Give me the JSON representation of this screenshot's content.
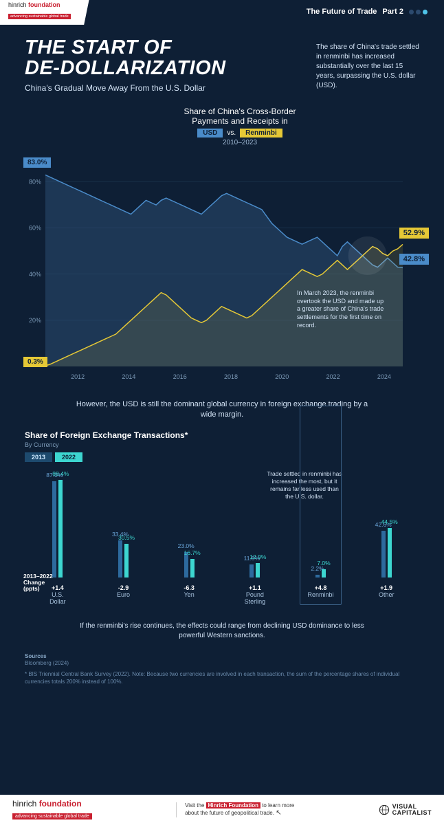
{
  "meta": {
    "brand_html": "hinrich <b>foundation</b>",
    "brand_tag": "advancing sustainable global trade",
    "series": "The Future of Trade",
    "part": "Part 2",
    "dot_count": 3,
    "dot_active_index": 2
  },
  "hero": {
    "title_l1": "THE START OF",
    "title_l2": "DE-DOLLARIZATION",
    "subtitle": "China's Gradual Move Away From the U.S. Dollar",
    "blurb": "The share of China's trade settled in renminbi has increased substantially over the last 15 years, surpassing the U.S. dollar (USD)."
  },
  "chart1": {
    "title": "Share of China's Cross-Border\nPayments and Receipts in",
    "legend_usd": "USD",
    "legend_vs": "vs.",
    "legend_rmb": "Renminbi",
    "period": "2010–2023",
    "y_ticks": [
      "80%",
      "60%",
      "40%",
      "20%"
    ],
    "x_ticks": [
      "2012",
      "2014",
      "2016",
      "2018",
      "2020",
      "2022",
      "2024"
    ],
    "usd_start": "83.0%",
    "rmb_start": "0.3%",
    "usd_end": "42.8%",
    "rmb_end": "52.9%",
    "annotation": "In March 2023, the renminbi overtook the USD and made up a greater share of China's trade settlements for the first time on record.",
    "colors": {
      "usd": "#4a8bc9",
      "usd_fill": "#30557d",
      "rmb": "#e5c836",
      "grid": "#24405e"
    },
    "usd_series": [
      83,
      82,
      81,
      80,
      79,
      78,
      77,
      76,
      75,
      74,
      73,
      72,
      71,
      70,
      69,
      68,
      67,
      66,
      68,
      70,
      72,
      71,
      70,
      72,
      73,
      72,
      71,
      70,
      69,
      68,
      67,
      66,
      68,
      70,
      72,
      74,
      75,
      74,
      73,
      72,
      71,
      70,
      69,
      68,
      65,
      62,
      60,
      58,
      56,
      55,
      54,
      53,
      54,
      55,
      56,
      54,
      52,
      50,
      48,
      52,
      54,
      52,
      50,
      48,
      46,
      44,
      43,
      45,
      47,
      45,
      43,
      42.8
    ],
    "rmb_series": [
      0.3,
      1,
      2,
      3,
      4,
      5,
      6,
      7,
      8,
      9,
      10,
      11,
      12,
      13,
      14,
      16,
      18,
      20,
      22,
      24,
      26,
      28,
      30,
      32,
      31,
      29,
      27,
      25,
      23,
      21,
      20,
      19,
      20,
      22,
      24,
      26,
      25,
      24,
      23,
      22,
      21,
      22,
      24,
      26,
      28,
      30,
      32,
      34,
      36,
      38,
      40,
      42,
      41,
      40,
      39,
      40,
      42,
      44,
      46,
      44,
      42,
      44,
      46,
      48,
      50,
      52,
      51,
      49,
      48,
      50,
      51,
      52.9
    ]
  },
  "mid_text": "However, the USD is still the dominant global currency in foreign exchange trading by a wide margin.",
  "chart2": {
    "title": "Share of Foreign Exchange Transactions*",
    "subtitle": "By Currency",
    "year_a": "2013",
    "year_b": "2022",
    "color_a": "#2d6a9e",
    "color_b": "#3dd6d0",
    "categories": [
      {
        "name": "U.S.\nDollar",
        "a": 87.0,
        "b": 88.4,
        "change": "+1.4"
      },
      {
        "name": "Euro",
        "a": 33.4,
        "b": 30.5,
        "change": "-2.9"
      },
      {
        "name": "Yen",
        "a": 23.0,
        "b": 16.7,
        "change": "-6.3"
      },
      {
        "name": "Pound\nSterling",
        "a": 11.8,
        "b": 12.9,
        "change": "+1.1"
      },
      {
        "name": "Renminbi",
        "a": 2.2,
        "b": 7.0,
        "change": "+4.8",
        "highlight": true
      },
      {
        "name": "Other",
        "a": 42.6,
        "b": 44.5,
        "change": "+1.9"
      }
    ],
    "change_label": "2013–2022\nChange\n(ppts)",
    "note": "Trade settled in renminbi has increased the most, but it remains far less used than the U.S. dollar.",
    "max": 100
  },
  "closing": "If the renminbi's rise continues, the effects could range from declining USD dominance to less powerful Western sanctions.",
  "sources": {
    "heading": "Sources",
    "line1": "Bloomberg (2024)",
    "note": "* BIS Triennial Central Bank Survey (2022). Note: Because two currencies are involved in each transaction, the sum of the percentage shares of individual currencies totals 200% instead of 100%."
  },
  "footer": {
    "brand_html": "hinrich <b>foundation</b>",
    "tag": "advancing sustainable global trade",
    "cta_pre": "Visit the ",
    "cta_hl": "Hinrich Foundation",
    "cta_post": " to learn more\nabout the future of geopolitical trade.",
    "vc": "VISUAL\nCAPITALIST"
  }
}
